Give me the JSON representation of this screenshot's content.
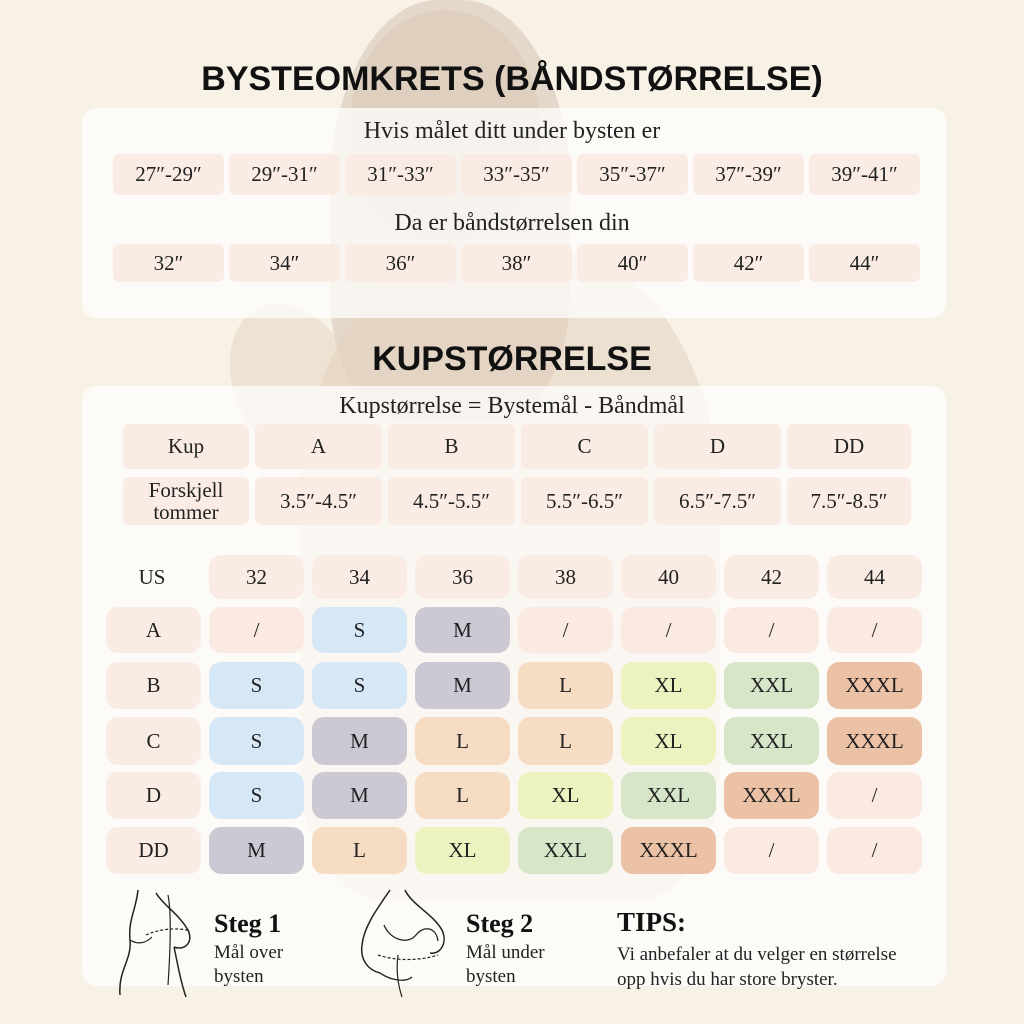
{
  "band": {
    "title": "BYSTEOMKRETS (BÅNDSTØRRELSE)",
    "under_caption": "Hvis målet ditt under bysten er",
    "under_values": [
      "27″-29″",
      "29″-31″",
      "31″-33″",
      "33″-35″",
      "35″-37″",
      "37″-39″",
      "39″-41″"
    ],
    "size_caption": "Da er båndstørrelsen din",
    "size_values": [
      "32″",
      "34″",
      "36″",
      "38″",
      "40″",
      "42″",
      "44″"
    ]
  },
  "cup": {
    "title": "KUPSTØRRELSE",
    "formula": "Kupstørrelse = Bystemål - Båndmål",
    "cup_label": "Kup",
    "cups": [
      "A",
      "B",
      "C",
      "D",
      "DD"
    ],
    "diff_label_1": "Forskjell",
    "diff_label_2": "tommer",
    "diffs": [
      "3.5″-4.5″",
      "4.5″-5.5″",
      "5.5″-6.5″",
      "6.5″-7.5″",
      "7.5″-8.5″"
    ]
  },
  "size_grid": {
    "corner": "US",
    "columns": [
      "32",
      "34",
      "36",
      "38",
      "40",
      "42",
      "44"
    ],
    "rows": [
      {
        "cup": "A",
        "sizes": [
          "/",
          "S",
          "M",
          "/",
          "/",
          "/",
          "/"
        ]
      },
      {
        "cup": "B",
        "sizes": [
          "S",
          "S",
          "M",
          "L",
          "XL",
          "XXL",
          "XXXL"
        ]
      },
      {
        "cup": "C",
        "sizes": [
          "S",
          "M",
          "L",
          "L",
          "XL",
          "XXL",
          "XXXL"
        ]
      },
      {
        "cup": "D",
        "sizes": [
          "S",
          "M",
          "L",
          "XL",
          "XXL",
          "XXXL",
          "/"
        ]
      },
      {
        "cup": "DD",
        "sizes": [
          "M",
          "L",
          "XL",
          "XXL",
          "XXXL",
          "/",
          "/"
        ]
      }
    ],
    "colors": {
      "S": "#d6e7f6",
      "M": "#cdc9d4",
      "L": "#f7dcc4",
      "XL": "#ecf2c0",
      "XXL": "#d7e6c8",
      "XXXL": "#ecc2a6",
      "/": "#faeae2"
    }
  },
  "steps": {
    "step1_title": "Steg 1",
    "step1_line1": "Mål over",
    "step1_line2": "bysten",
    "step2_title": "Steg 2",
    "step2_line1": "Mål under",
    "step2_line2": "bysten",
    "tips_title": "TIPS:",
    "tips_line1": "Vi anbefaler at du velger en størrelse",
    "tips_line2": "opp hvis du har store bryster."
  }
}
